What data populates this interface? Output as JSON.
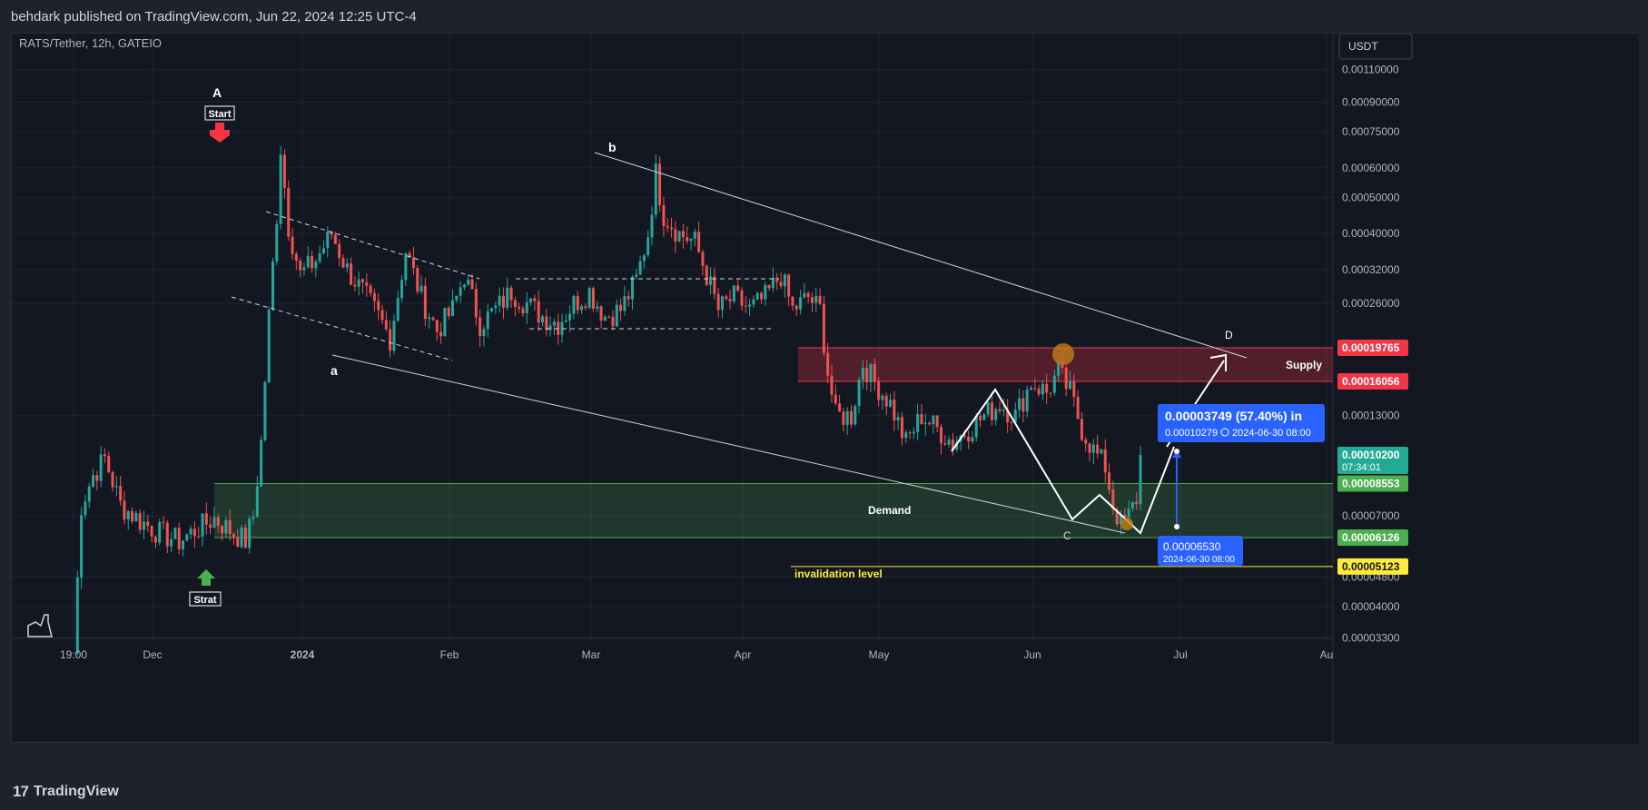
{
  "header": {
    "published": "behdark published on TradingView.com, Jun 22, 2024 12:25 UTC-4"
  },
  "footer": {
    "brand": "TradingView",
    "brand_mark": "17"
  },
  "chart_data": {
    "type": "candlestick",
    "symbol_title": "RATS/Tether, 12h, GATEIO",
    "y_scale": "log",
    "currency_label": "USDT",
    "grid": true,
    "x_ticks": [
      "19:00",
      "Dec",
      "2024",
      "Feb",
      "Mar",
      "Apr",
      "May",
      "Jun",
      "Jul",
      "Au"
    ],
    "y_ticks": [
      0.0011,
      0.0009,
      0.00075,
      0.0006,
      0.0005,
      0.0004,
      0.00032,
      0.00026,
      0.00013,
      7e-05,
      4.8e-05,
      4e-05,
      3.3e-05
    ],
    "y_tick_labels": [
      "0.00110000",
      "0.00090000",
      "0.00075000",
      "0.00060000",
      "0.00050000",
      "0.00040000",
      "0.00032000",
      "0.00026000",
      "0.00013000",
      "0.00007000",
      "0.00004800",
      "0.00004000",
      "0.00003300"
    ],
    "price_tags": [
      {
        "label": "0.00019765",
        "value": 0.00019765,
        "color": "#f23645",
        "text_color": "#ffffff"
      },
      {
        "label": "0.00016056",
        "value": 0.00016056,
        "color": "#f23645",
        "text_color": "#ffffff"
      },
      {
        "label": "0.00010200",
        "value": 0.000102,
        "color": "#22ab94",
        "text_color": "#ffffff",
        "sub": "07:34:01"
      },
      {
        "label": "0.00008553",
        "value": 8.553e-05,
        "color": "#4caf50",
        "text_color": "#ffffff"
      },
      {
        "label": "0.00006126",
        "value": 6.126e-05,
        "color": "#4caf50",
        "text_color": "#ffffff"
      },
      {
        "label": "0.00005123",
        "value": 5.123e-05,
        "color": "#ffeb3b",
        "text_color": "#131722"
      }
    ],
    "zones": [
      {
        "name": "Supply",
        "top": 0.00019765,
        "bottom": 0.00016056,
        "color": "#f23645"
      },
      {
        "name": "Demand",
        "top": 8.553e-05,
        "bottom": 6.126e-05,
        "color": "#4caf50"
      }
    ],
    "invalidation": {
      "label": "invalidation level",
      "value": 5.123e-05
    },
    "wave_labels": [
      "A",
      "a",
      "b",
      "C",
      "D"
    ],
    "markers": [
      {
        "label": "Start",
        "color": "#f23645",
        "direction": "down"
      },
      {
        "label": "Strat",
        "color": "#4caf50",
        "direction": "up"
      }
    ],
    "measure": {
      "headline": "0.00003749 (57.40%) in",
      "detail_value": "0.00010279",
      "detail_time": "2024-06-30  08:00",
      "start_value": "0.00006530",
      "start_time": "2024-06-30 08:00"
    },
    "candles_close_path": [
      {
        "bar": 0,
        "close": 3e-05
      },
      {
        "bar": 2,
        "close": 7.5e-05
      },
      {
        "bar": 5,
        "close": 9e-05
      },
      {
        "bar": 8,
        "close": 0.0001
      },
      {
        "bar": 12,
        "close": 7.5e-05
      },
      {
        "bar": 17,
        "close": 6.8e-05
      },
      {
        "bar": 22,
        "close": 6.3e-05
      },
      {
        "bar": 27,
        "close": 6e-05
      },
      {
        "bar": 32,
        "close": 6.5e-05
      },
      {
        "bar": 36,
        "close": 6.9e-05
      },
      {
        "bar": 41,
        "close": 6.3e-05
      },
      {
        "bar": 44,
        "close": 6e-05
      },
      {
        "bar": 46,
        "close": 7e-05
      },
      {
        "bar": 48,
        "close": 0.00011
      },
      {
        "bar": 50,
        "close": 0.00024
      },
      {
        "bar": 52,
        "close": 0.00045
      },
      {
        "bar": 53,
        "close": 0.00068
      },
      {
        "bar": 55,
        "close": 0.00042
      },
      {
        "bar": 58,
        "close": 0.00031
      },
      {
        "bar": 62,
        "close": 0.00034
      },
      {
        "bar": 66,
        "close": 0.0004
      },
      {
        "bar": 70,
        "close": 0.00032
      },
      {
        "bar": 74,
        "close": 0.00028
      },
      {
        "bar": 78,
        "close": 0.00024
      },
      {
        "bar": 81,
        "close": 0.00021
      },
      {
        "bar": 85,
        "close": 0.00036
      },
      {
        "bar": 89,
        "close": 0.00027
      },
      {
        "bar": 93,
        "close": 0.00022
      },
      {
        "bar": 97,
        "close": 0.00025
      },
      {
        "bar": 100,
        "close": 0.00031
      },
      {
        "bar": 104,
        "close": 0.00023
      },
      {
        "bar": 108,
        "close": 0.00025
      },
      {
        "bar": 112,
        "close": 0.00028
      },
      {
        "bar": 116,
        "close": 0.00026
      },
      {
        "bar": 120,
        "close": 0.00024
      },
      {
        "bar": 124,
        "close": 0.00023
      },
      {
        "bar": 128,
        "close": 0.00026
      },
      {
        "bar": 132,
        "close": 0.00028
      },
      {
        "bar": 136,
        "close": 0.00024
      },
      {
        "bar": 140,
        "close": 0.00025
      },
      {
        "bar": 144,
        "close": 0.0003
      },
      {
        "bar": 147,
        "close": 0.0004
      },
      {
        "bar": 149,
        "close": 0.00058
      },
      {
        "bar": 151,
        "close": 0.00045
      },
      {
        "bar": 155,
        "close": 0.0004
      },
      {
        "bar": 159,
        "close": 0.00038
      },
      {
        "bar": 162,
        "close": 0.00031
      },
      {
        "bar": 165,
        "close": 0.00025
      },
      {
        "bar": 169,
        "close": 0.00027
      },
      {
        "bar": 173,
        "close": 0.00025
      },
      {
        "bar": 177,
        "close": 0.00027
      },
      {
        "bar": 181,
        "close": 0.00031
      },
      {
        "bar": 184,
        "close": 0.00025
      },
      {
        "bar": 188,
        "close": 0.00027
      },
      {
        "bar": 191,
        "close": 0.00025
      },
      {
        "bar": 193,
        "close": 0.00017
      },
      {
        "bar": 195,
        "close": 0.00013
      },
      {
        "bar": 199,
        "close": 0.00013
      },
      {
        "bar": 202,
        "close": 0.00018
      },
      {
        "bar": 205,
        "close": 0.00016
      },
      {
        "bar": 209,
        "close": 0.00014
      },
      {
        "bar": 213,
        "close": 0.00011
      },
      {
        "bar": 217,
        "close": 0.00013
      },
      {
        "bar": 221,
        "close": 0.00012
      },
      {
        "bar": 225,
        "close": 0.00011
      },
      {
        "bar": 229,
        "close": 0.00012
      },
      {
        "bar": 233,
        "close": 0.00013
      },
      {
        "bar": 237,
        "close": 0.00014
      },
      {
        "bar": 241,
        "close": 0.00013
      },
      {
        "bar": 245,
        "close": 0.00016
      },
      {
        "bar": 249,
        "close": 0.00015
      },
      {
        "bar": 252,
        "close": 0.00017
      },
      {
        "bar": 255,
        "close": 0.00015
      },
      {
        "bar": 258,
        "close": 0.00012
      },
      {
        "bar": 261,
        "close": 0.000105
      },
      {
        "bar": 264,
        "close": 9.5e-05
      },
      {
        "bar": 266,
        "close": 7.5e-05
      },
      {
        "bar": 268,
        "close": 6.6e-05
      },
      {
        "bar": 270,
        "close": 7e-05
      },
      {
        "bar": 272,
        "close": 7.8e-05
      },
      {
        "bar": 273,
        "close": 0.000102
      }
    ]
  }
}
